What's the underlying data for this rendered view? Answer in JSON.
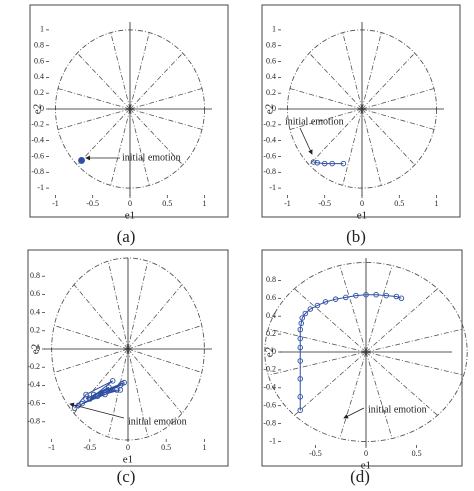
{
  "chart_data": [
    {
      "type": "scatter",
      "caption": "(a)",
      "xlabel": "e1",
      "ylabel": "e2",
      "annotation": "initial emotion",
      "x": [
        -0.65
      ],
      "y": [
        -0.65
      ],
      "color": "#2c4fa3",
      "xlim": [
        -1.1,
        1.1
      ],
      "ylim": [
        -1.1,
        1.1
      ],
      "xticks": [
        -1,
        -0.5,
        0,
        0.5,
        1
      ],
      "yticks": [
        -1,
        -0.8,
        -0.6,
        -0.4,
        -0.2,
        0,
        0.2,
        0.4,
        0.6,
        0.8,
        1
      ]
    },
    {
      "type": "line",
      "caption": "(b)",
      "xlabel": "e1",
      "ylabel": "e2",
      "annotation": "initial emotion",
      "x": [
        -0.65,
        -0.6,
        -0.5,
        -0.4,
        -0.25
      ],
      "y": [
        -0.67,
        -0.68,
        -0.69,
        -0.69,
        -0.69
      ],
      "color": "#2c4fa3",
      "xlim": [
        -1.1,
        1.1
      ],
      "ylim": [
        -1.1,
        1.1
      ],
      "xticks": [
        -1,
        -0.5,
        0,
        0.5,
        1
      ],
      "yticks": [
        -1,
        -0.8,
        -0.6,
        -0.4,
        -0.2,
        0,
        0.2,
        0.4,
        0.6,
        0.8,
        1
      ]
    },
    {
      "type": "line",
      "caption": "(c)",
      "xlabel": "e1",
      "ylabel": "e2",
      "annotation": "initial emotion",
      "x": [
        -0.7,
        -0.55,
        -0.2,
        -0.5,
        -0.1,
        -0.6,
        -0.05,
        -0.45,
        -0.15,
        -0.65,
        -0.3,
        -0.08,
        -0.55,
        -0.25,
        -0.4,
        -0.1
      ],
      "y": [
        -0.65,
        -0.5,
        -0.35,
        -0.55,
        -0.4,
        -0.6,
        -0.37,
        -0.5,
        -0.45,
        -0.62,
        -0.5,
        -0.38,
        -0.55,
        -0.42,
        -0.52,
        -0.45
      ],
      "color": "#2c4fa3",
      "xlim": [
        -1.1,
        1.1
      ],
      "ylim": [
        -1,
        1
      ],
      "xticks": [
        -1,
        -0.5,
        0,
        0.5,
        1
      ],
      "yticks": [
        -0.8,
        -0.6,
        -0.4,
        -0.2,
        0,
        0.2,
        0.4,
        0.6,
        0.8
      ]
    },
    {
      "type": "line",
      "caption": "(d)",
      "xlabel": "e1",
      "ylabel": "e2",
      "annotation": "initial emotion",
      "x": [
        -0.65,
        -0.65,
        -0.65,
        -0.65,
        -0.65,
        -0.65,
        -0.65,
        -0.64,
        -0.63,
        -0.6,
        -0.55,
        -0.48,
        -0.4,
        -0.3,
        -0.2,
        -0.1,
        0,
        0.1,
        0.2,
        0.3,
        0.35
      ],
      "y": [
        -0.65,
        -0.5,
        -0.3,
        -0.1,
        0.05,
        0.15,
        0.25,
        0.32,
        0.38,
        0.43,
        0.48,
        0.52,
        0.56,
        0.59,
        0.61,
        0.63,
        0.64,
        0.64,
        0.63,
        0.62,
        0.6
      ],
      "color": "#2c4fa3",
      "xlim": [
        -0.85,
        0.85
      ],
      "ylim": [
        -1.05,
        1.05
      ],
      "xticks": [
        -0.5,
        0,
        0.5
      ],
      "yticks": [
        -1,
        -0.8,
        -0.6,
        -0.4,
        -0.2,
        0,
        0.2,
        0.4,
        0.6,
        0.8
      ]
    }
  ]
}
